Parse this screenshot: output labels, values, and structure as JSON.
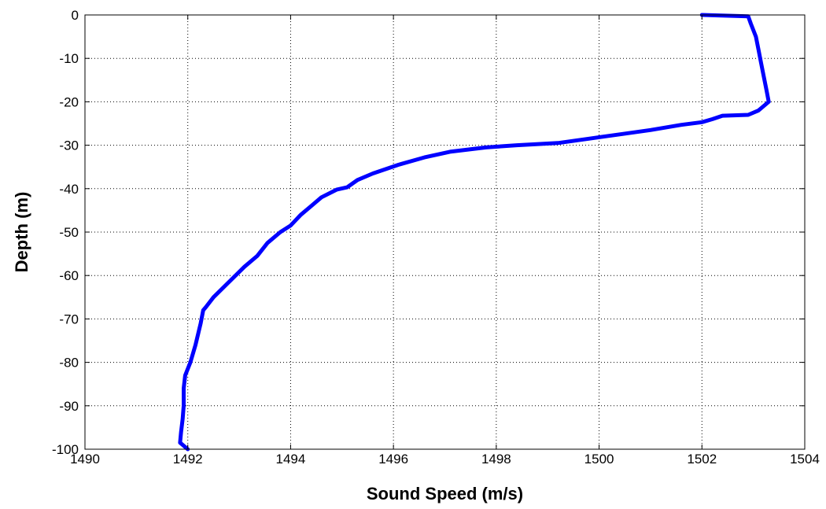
{
  "chart_data": {
    "type": "line",
    "title": "",
    "xlabel": "Sound Speed (m/s)",
    "ylabel": "Depth (m)",
    "xlim": [
      1490,
      1504
    ],
    "ylim": [
      -100,
      0
    ],
    "xticks": [
      1490,
      1492,
      1494,
      1496,
      1498,
      1500,
      1502,
      1504
    ],
    "yticks": [
      0,
      -10,
      -20,
      -30,
      -40,
      -50,
      -60,
      -70,
      -80,
      -90,
      -100
    ],
    "xtick_labels": [
      "1490",
      "1492",
      "1494",
      "1496",
      "1498",
      "1500",
      "1502",
      "1504"
    ],
    "ytick_labels": [
      "0",
      "-10",
      "-20",
      "-30",
      "-40",
      "-50",
      "-60",
      "-70",
      "-80",
      "-90",
      "-100"
    ],
    "grid": true,
    "grid_style": "dotted",
    "series": [
      {
        "color": "#0000ff",
        "x": [
          1502.0,
          1502.9,
          1502.95,
          1503.05,
          1503.1,
          1503.15,
          1503.2,
          1503.25,
          1503.3,
          1503.1,
          1502.9,
          1502.4,
          1502.2,
          1502.0,
          1501.6,
          1501.0,
          1500.4,
          1499.8,
          1499.2,
          1498.4,
          1497.8,
          1497.1,
          1496.6,
          1496.1,
          1495.6,
          1495.3,
          1495.1,
          1494.9,
          1494.6,
          1494.4,
          1494.2,
          1494.0,
          1493.8,
          1493.55,
          1493.35,
          1493.1,
          1492.8,
          1492.5,
          1492.35,
          1492.3,
          1492.25,
          1492.15,
          1492.05,
          1491.95,
          1491.92,
          1491.92,
          1491.9,
          1491.87,
          1491.85,
          1492.0
        ],
        "y": [
          0,
          -0.3,
          -2,
          -5,
          -8,
          -11,
          -14,
          -17,
          -20,
          -22,
          -23,
          -23.2,
          -24,
          -24.7,
          -25.3,
          -26.5,
          -27.5,
          -28.5,
          -29.5,
          -30,
          -30.5,
          -31.5,
          -32.8,
          -34.5,
          -36.5,
          -38,
          -39.7,
          -40.2,
          -42,
          -44,
          -46,
          -48.5,
          -50,
          -52.5,
          -55.5,
          -58,
          -61.5,
          -65,
          -67.3,
          -68,
          -71,
          -76,
          -80,
          -83,
          -86,
          -90,
          -93,
          -96,
          -98.5,
          -100
        ]
      }
    ]
  }
}
